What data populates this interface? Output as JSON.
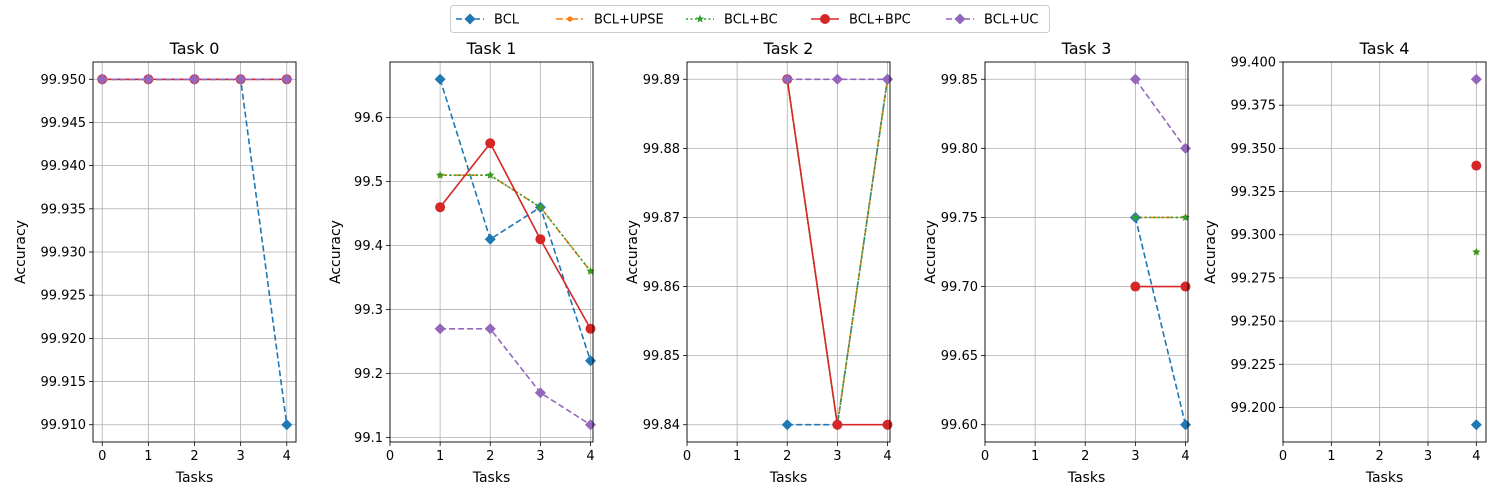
{
  "legend": {
    "placement": "top-center",
    "entries": [
      {
        "name": "BCL",
        "color": "#1f77b4",
        "dash": "dashed",
        "marker": "diamond"
      },
      {
        "name": "BCL+UPSE",
        "color": "#ff7f0e",
        "dash": "dashdot",
        "marker": "dot"
      },
      {
        "name": "BCL+BC",
        "color": "#2ca02c",
        "dash": "dotted",
        "marker": "star"
      },
      {
        "name": "BCL+BPC",
        "color": "#d62728",
        "dash": "solid",
        "marker": "circle"
      },
      {
        "name": "BCL+UC",
        "color": "#9467bd",
        "dash": "dashed",
        "marker": "diamond"
      }
    ]
  },
  "chart_data": [
    {
      "type": "line",
      "title": "Task 0",
      "xlabel": "Tasks",
      "ylabel": "Accuracy",
      "grid": true,
      "xlim": [
        -0.2,
        4.2
      ],
      "ylim": [
        99.908,
        99.952
      ],
      "xticks": [
        "0",
        "1",
        "2",
        "3",
        "4"
      ],
      "yticks": [
        "99.910",
        "99.915",
        "99.920",
        "99.925",
        "99.930",
        "99.935",
        "99.940",
        "99.945",
        "99.950"
      ],
      "series": [
        {
          "name": "BCL",
          "x": [
            0,
            1,
            2,
            3,
            4
          ],
          "values": [
            99.95,
            99.95,
            99.95,
            99.95,
            99.91
          ]
        },
        {
          "name": "BCL+UPSE",
          "x": [
            0,
            1,
            2,
            3,
            4
          ],
          "values": [
            99.95,
            99.95,
            99.95,
            99.95,
            99.95
          ]
        },
        {
          "name": "BCL+BC",
          "x": [
            0,
            1,
            2,
            3,
            4
          ],
          "values": [
            99.95,
            99.95,
            99.95,
            99.95,
            99.95
          ]
        },
        {
          "name": "BCL+BPC",
          "x": [
            0,
            1,
            2,
            3,
            4
          ],
          "values": [
            99.95,
            99.95,
            99.95,
            99.95,
            99.95
          ]
        },
        {
          "name": "BCL+UC",
          "x": [
            0,
            1,
            2,
            3,
            4
          ],
          "values": [
            99.95,
            99.95,
            99.95,
            99.95,
            99.95
          ]
        }
      ]
    },
    {
      "type": "line",
      "title": "Task 1",
      "xlabel": "Tasks",
      "ylabel": "Accuracy",
      "grid": true,
      "xlim": [
        0,
        4.05
      ],
      "ylim": [
        99.093,
        99.687
      ],
      "xticks": [
        "0",
        "1",
        "2",
        "3",
        "4"
      ],
      "yticks": [
        "99.1",
        "99.2",
        "99.3",
        "99.4",
        "99.5",
        "99.6"
      ],
      "series": [
        {
          "name": "BCL",
          "x": [
            1,
            2,
            3,
            4
          ],
          "values": [
            99.66,
            99.41,
            99.46,
            99.22
          ]
        },
        {
          "name": "BCL+UPSE",
          "x": [
            1,
            2,
            3,
            4
          ],
          "values": [
            99.51,
            99.51,
            99.46,
            99.36
          ]
        },
        {
          "name": "BCL+BC",
          "x": [
            1,
            2,
            3,
            4
          ],
          "values": [
            99.51,
            99.51,
            99.46,
            99.36
          ]
        },
        {
          "name": "BCL+BPC",
          "x": [
            1,
            2,
            3,
            4
          ],
          "values": [
            99.46,
            99.56,
            99.41,
            99.27
          ]
        },
        {
          "name": "BCL+UC",
          "x": [
            1,
            2,
            3,
            4
          ],
          "values": [
            99.27,
            99.27,
            99.17,
            99.12
          ]
        }
      ]
    },
    {
      "type": "line",
      "title": "Task 2",
      "xlabel": "Tasks",
      "ylabel": "Accuracy",
      "grid": true,
      "xlim": [
        0,
        4.05
      ],
      "ylim": [
        99.8375,
        99.8925
      ],
      "xticks": [
        "0",
        "1",
        "2",
        "3",
        "4"
      ],
      "yticks": [
        "99.84",
        "99.85",
        "99.86",
        "99.87",
        "99.88",
        "99.89"
      ],
      "series": [
        {
          "name": "BCL",
          "x": [
            2,
            3,
            4
          ],
          "values": [
            99.84,
            99.84,
            99.89
          ]
        },
        {
          "name": "BCL+UPSE",
          "x": [
            2,
            3,
            4
          ],
          "values": [
            99.89,
            99.84,
            99.89
          ]
        },
        {
          "name": "BCL+BC",
          "x": [
            2,
            3,
            4
          ],
          "values": [
            99.89,
            99.84,
            99.89
          ]
        },
        {
          "name": "BCL+BPC",
          "x": [
            2,
            3,
            4
          ],
          "values": [
            99.89,
            99.84,
            99.84
          ]
        },
        {
          "name": "BCL+UC",
          "x": [
            2,
            3,
            4
          ],
          "values": [
            99.89,
            99.89,
            99.89
          ]
        }
      ]
    },
    {
      "type": "line",
      "title": "Task 3",
      "xlabel": "Tasks",
      "ylabel": "Accuracy",
      "grid": true,
      "xlim": [
        0,
        4.05
      ],
      "ylim": [
        99.5875,
        99.8625
      ],
      "xticks": [
        "0",
        "1",
        "2",
        "3",
        "4"
      ],
      "yticks": [
        "99.60",
        "99.65",
        "99.70",
        "99.75",
        "99.80",
        "99.85"
      ],
      "series": [
        {
          "name": "BCL",
          "x": [
            3,
            4
          ],
          "values": [
            99.75,
            99.6
          ]
        },
        {
          "name": "BCL+UPSE",
          "x": [
            3,
            4
          ],
          "values": [
            99.75,
            99.75
          ]
        },
        {
          "name": "BCL+BC",
          "x": [
            3,
            4
          ],
          "values": [
            99.75,
            99.75
          ]
        },
        {
          "name": "BCL+BPC",
          "x": [
            3,
            4
          ],
          "values": [
            99.7,
            99.7
          ]
        },
        {
          "name": "BCL+UC",
          "x": [
            3,
            4
          ],
          "values": [
            99.85,
            99.8
          ]
        }
      ]
    },
    {
      "type": "line",
      "title": "Task 4",
      "xlabel": "Tasks",
      "ylabel": "Accuracy",
      "grid": true,
      "xlim": [
        0,
        4.2
      ],
      "ylim": [
        99.18,
        99.4
      ],
      "xticks": [
        "0",
        "1",
        "2",
        "3",
        "4"
      ],
      "yticks": [
        "99.200",
        "99.225",
        "99.250",
        "99.275",
        "99.300",
        "99.325",
        "99.350",
        "99.375",
        "99.400"
      ],
      "series": [
        {
          "name": "BCL",
          "x": [
            4
          ],
          "values": [
            99.19
          ]
        },
        {
          "name": "BCL+UPSE",
          "x": [
            4
          ],
          "values": [
            99.29
          ]
        },
        {
          "name": "BCL+BC",
          "x": [
            4
          ],
          "values": [
            99.29
          ]
        },
        {
          "name": "BCL+BPC",
          "x": [
            4
          ],
          "values": [
            99.34
          ]
        },
        {
          "name": "BCL+UC",
          "x": [
            4
          ],
          "values": [
            99.39
          ]
        }
      ]
    }
  ]
}
